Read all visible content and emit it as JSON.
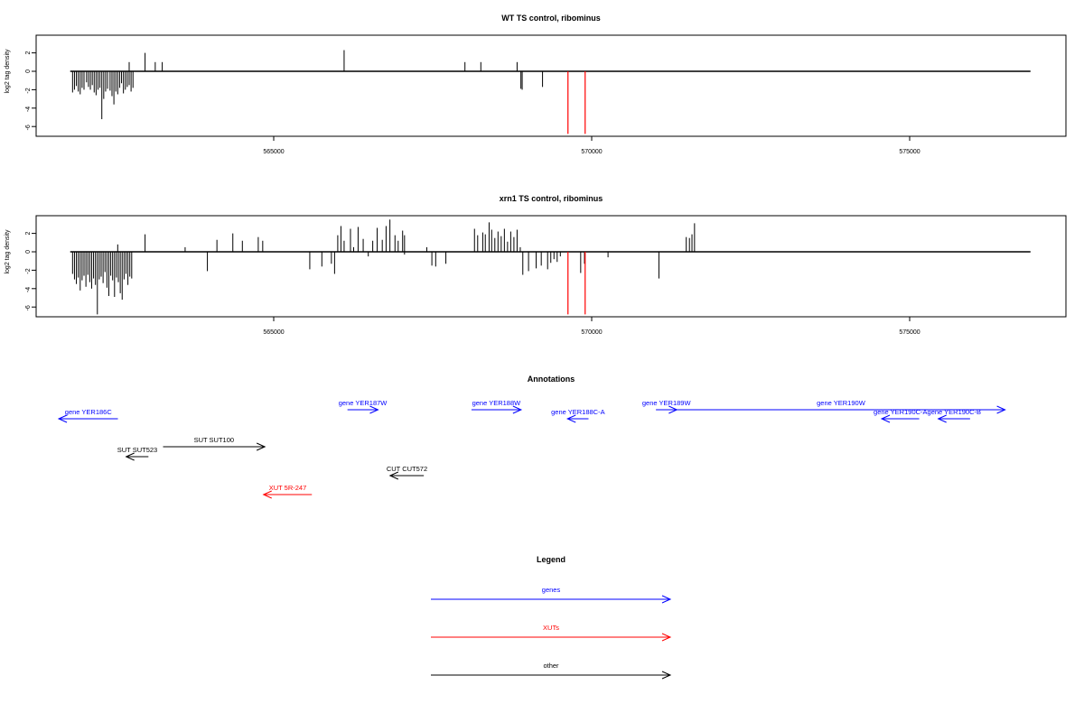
{
  "colors": {
    "axis": "#000000",
    "gene": "#0000ff",
    "xut": "#ff0000",
    "other": "#000000",
    "highlight": "#ff0000"
  },
  "x_ticks": [
    565000,
    570000,
    575000
  ],
  "y_ticks": [
    2,
    0,
    -2,
    -4,
    -6
  ],
  "ylabel": "log2 tag density",
  "chart_data": [
    {
      "type": "bar",
      "title": "WT TS control, ribominus",
      "ylabel": "log2 tag density",
      "xlim": [
        561600,
        577500
      ],
      "ylim": [
        -6.8,
        3.8
      ],
      "baseline": [
        561800,
        576900
      ],
      "x_ticks": [
        565000,
        570000,
        575000
      ],
      "y_ticks": [
        2,
        0,
        -2,
        -4,
        -6
      ],
      "bars": [
        [
          561830,
          -2.3
        ],
        [
          561860,
          -2.0
        ],
        [
          561890,
          -1.6
        ],
        [
          561920,
          -2.2
        ],
        [
          561950,
          -2.5
        ],
        [
          561980,
          -1.8
        ],
        [
          562010,
          -2.0
        ],
        [
          562050,
          -1.2
        ],
        [
          562080,
          -1.7
        ],
        [
          562110,
          -2.0
        ],
        [
          562140,
          -1.5
        ],
        [
          562170,
          -2.3
        ],
        [
          562200,
          -2.6
        ],
        [
          562230,
          -2.0
        ],
        [
          562260,
          -1.8
        ],
        [
          562290,
          -5.2
        ],
        [
          562320,
          -3.0
        ],
        [
          562350,
          -2.2
        ],
        [
          562380,
          -1.9
        ],
        [
          562420,
          -2.1
        ],
        [
          562450,
          -2.7
        ],
        [
          562480,
          -3.6
        ],
        [
          562510,
          -2.2
        ],
        [
          562540,
          -2.5
        ],
        [
          562570,
          -1.8
        ],
        [
          562600,
          -1.3
        ],
        [
          562630,
          -2.4
        ],
        [
          562660,
          -2.0
        ],
        [
          562690,
          -1.7
        ],
        [
          562720,
          -1.5
        ],
        [
          562750,
          -2.2
        ],
        [
          562780,
          -1.8
        ],
        [
          562720,
          1.0
        ],
        [
          562970,
          2.0
        ],
        [
          563130,
          1.0
        ],
        [
          563240,
          1.0
        ],
        [
          566100,
          2.3
        ],
        [
          568000,
          1.0
        ],
        [
          568250,
          1.0
        ],
        [
          568820,
          1.0
        ],
        [
          568880,
          -1.9
        ],
        [
          568900,
          -2.0
        ],
        [
          569220,
          -1.7
        ]
      ],
      "highlights": [
        569620,
        569890
      ]
    },
    {
      "type": "bar",
      "title": "xrn1 TS control, ribominus",
      "ylabel": "log2 tag density",
      "xlim": [
        561600,
        577500
      ],
      "ylim": [
        -6.8,
        3.8
      ],
      "baseline": [
        561800,
        576900
      ],
      "x_ticks": [
        565000,
        570000,
        575000
      ],
      "y_ticks": [
        2,
        0,
        -2,
        -4,
        -6
      ],
      "bars": [
        [
          561830,
          -2.4
        ],
        [
          561860,
          -3.0
        ],
        [
          561890,
          -3.5
        ],
        [
          561920,
          -2.8
        ],
        [
          561950,
          -4.2
        ],
        [
          561980,
          -3.1
        ],
        [
          562010,
          -2.6
        ],
        [
          562040,
          -3.8
        ],
        [
          562070,
          -2.5
        ],
        [
          562100,
          -3.3
        ],
        [
          562130,
          -4.0
        ],
        [
          562160,
          -2.9
        ],
        [
          562190,
          -3.6
        ],
        [
          562220,
          -6.8
        ],
        [
          562250,
          -3.0
        ],
        [
          562280,
          -2.7
        ],
        [
          562310,
          -3.4
        ],
        [
          562340,
          -2.2
        ],
        [
          562370,
          -3.9
        ],
        [
          562400,
          -4.8
        ],
        [
          562430,
          -2.6
        ],
        [
          562460,
          -3.1
        ],
        [
          562490,
          -4.9
        ],
        [
          562520,
          -2.8
        ],
        [
          562550,
          -3.3
        ],
        [
          562580,
          -4.5
        ],
        [
          562610,
          -5.2
        ],
        [
          562640,
          -3.0
        ],
        [
          562670,
          -2.4
        ],
        [
          562700,
          -3.6
        ],
        [
          562730,
          -2.7
        ],
        [
          562760,
          -2.9
        ],
        [
          562540,
          0.8
        ],
        [
          562970,
          1.9
        ],
        [
          563600,
          0.5
        ],
        [
          563950,
          -2.1
        ],
        [
          564100,
          1.3
        ],
        [
          564350,
          2.0
        ],
        [
          564500,
          1.2
        ],
        [
          564750,
          1.6
        ],
        [
          564820,
          1.2
        ],
        [
          565560,
          -1.9
        ],
        [
          565750,
          -1.6
        ],
        [
          565900,
          -1.3
        ],
        [
          565950,
          -2.4
        ],
        [
          566000,
          1.8
        ],
        [
          566050,
          2.8
        ],
        [
          566100,
          1.2
        ],
        [
          566200,
          2.5
        ],
        [
          566250,
          0.5
        ],
        [
          566320,
          2.7
        ],
        [
          566400,
          1.4
        ],
        [
          566480,
          -0.5
        ],
        [
          566550,
          1.2
        ],
        [
          566620,
          2.6
        ],
        [
          566700,
          1.3
        ],
        [
          566760,
          2.8
        ],
        [
          566820,
          3.5
        ],
        [
          566900,
          1.8
        ],
        [
          566950,
          1.2
        ],
        [
          567020,
          2.3
        ],
        [
          567050,
          1.8
        ],
        [
          567050,
          -0.3
        ],
        [
          567400,
          0.5
        ],
        [
          567480,
          -1.5
        ],
        [
          567540,
          -1.6
        ],
        [
          567700,
          -1.3
        ],
        [
          568150,
          2.5
        ],
        [
          568200,
          1.8
        ],
        [
          568280,
          2.1
        ],
        [
          568320,
          1.9
        ],
        [
          568380,
          3.2
        ],
        [
          568420,
          2.4
        ],
        [
          568470,
          1.5
        ],
        [
          568520,
          2.2
        ],
        [
          568570,
          1.7
        ],
        [
          568620,
          2.5
        ],
        [
          568670,
          1.1
        ],
        [
          568720,
          2.2
        ],
        [
          568770,
          1.6
        ],
        [
          568820,
          2.4
        ],
        [
          568870,
          0.5
        ],
        [
          568910,
          -2.5
        ],
        [
          569000,
          -2.1
        ],
        [
          569120,
          -1.8
        ],
        [
          569200,
          -1.5
        ],
        [
          569300,
          -1.9
        ],
        [
          569350,
          -1.2
        ],
        [
          569400,
          -0.8
        ],
        [
          569450,
          -1.1
        ],
        [
          569500,
          -0.5
        ],
        [
          569820,
          -2.3
        ],
        [
          569880,
          -1.3
        ],
        [
          570250,
          -0.6
        ],
        [
          571050,
          -2.9
        ],
        [
          571480,
          1.6
        ],
        [
          571530,
          1.5
        ],
        [
          571570,
          1.9
        ],
        [
          571610,
          3.1
        ]
      ],
      "highlights": [
        569620,
        569890
      ]
    }
  ],
  "annotations": {
    "title": "Annotations",
    "xlim": [
      561600,
      577500
    ],
    "items": [
      {
        "label": "gene YER186C",
        "start": 562550,
        "end": 561620,
        "row": 1,
        "kind": "gene"
      },
      {
        "label": "gene YER187W",
        "start": 566160,
        "end": 566640,
        "row": 0,
        "kind": "gene"
      },
      {
        "label": "gene YER188W",
        "start": 568110,
        "end": 568890,
        "row": 0,
        "kind": "gene"
      },
      {
        "label": "gene YER188C-A",
        "start": 569950,
        "end": 569620,
        "row": 1,
        "kind": "gene"
      },
      {
        "label": "gene YER189W",
        "start": 571010,
        "end": 571340,
        "row": 0,
        "kind": "gene"
      },
      {
        "label": "gene YER190W",
        "start": 571340,
        "end": 576500,
        "row": 0,
        "kind": "gene"
      },
      {
        "label": "gene YER190C-A",
        "start": 575150,
        "end": 574560,
        "row": 1,
        "kind": "gene"
      },
      {
        "label": "gene YER190C-B",
        "start": 575950,
        "end": 575450,
        "row": 1,
        "kind": "gene"
      },
      {
        "label": "SUT SUT100",
        "start": 563260,
        "end": 564860,
        "row": 2,
        "kind": "other"
      },
      {
        "label": "SUT SUT523",
        "start": 563030,
        "end": 562680,
        "row": 3,
        "kind": "other"
      },
      {
        "label": "CUT CUT572",
        "start": 567360,
        "end": 566830,
        "row": 4,
        "kind": "other"
      },
      {
        "label": "XUT 5R-247",
        "start": 565600,
        "end": 564840,
        "row": 5,
        "kind": "xut"
      }
    ]
  },
  "legend": {
    "title": "Legend",
    "items": [
      {
        "label": "genes",
        "kind": "gene"
      },
      {
        "label": "XUTs",
        "kind": "xut"
      },
      {
        "label": "other",
        "kind": "other"
      }
    ]
  }
}
